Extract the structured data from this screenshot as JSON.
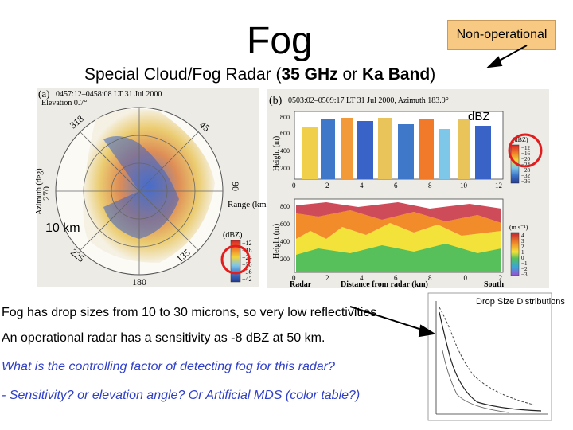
{
  "slide": {
    "title": "Fog",
    "badge": "Non-operational",
    "subtitle_prefix": "Special Cloud/Fog Radar (",
    "subtitle_freq": "35 GHz",
    "subtitle_mid": " or ",
    "subtitle_band": "Ka Band",
    "subtitle_suffix": ")",
    "annotation_dbz": "dBZ",
    "annotation_range": "10 km",
    "annotation_drop": "Drop Size Distributions",
    "body": [
      "Fog has drop sizes from 10 to 30 microns, so very low reflectivities.",
      "An operational radar has a sensitivity as -8 dBZ at 50 km.",
      "What is the controlling factor of detecting fog for this radar?",
      "- Sensitivity? or elevation angle? Or Artificial MDS (color table?)"
    ]
  },
  "figure_a": {
    "panel": "(a)",
    "header": "0457:12–0458:08 LT 31 Jul 2000",
    "elevation": "Elevation  0.7°",
    "azimuth_labels": [
      "318",
      "45",
      "270",
      "90",
      "225",
      "135",
      "180"
    ],
    "axis_left": "Azimuth (deg)",
    "range_label": "Range (km)",
    "colorbar_title": "(dBZ)",
    "colorbar_ticks": [
      "−12",
      "−18",
      "−24",
      "−30",
      "−36",
      "−42"
    ]
  },
  "figure_b": {
    "panel": "(b)",
    "header": "0503:02–0509:17 LT 31 Jul 2000, Azimuth 183.9°",
    "ylabel": "Height (m)",
    "xticks": [
      "0",
      "2",
      "4",
      "6",
      "8",
      "10",
      "12"
    ],
    "yticks_top": [
      "800",
      "600",
      "400",
      "200"
    ],
    "yticks_bottom": [
      "800",
      "600",
      "400",
      "200"
    ],
    "xlabel_left": "Radar",
    "xlabel_mid": "Distance from radar (km)",
    "xlabel_right": "South",
    "cb_top_title": "(dBZ)",
    "cb_top_ticks": [
      "−12",
      "−16",
      "−20",
      "−24",
      "−28",
      "−32",
      "−36"
    ],
    "cb_bottom_title": "(m s⁻¹)",
    "cb_bottom_ticks": [
      "4",
      "3",
      "2",
      "1",
      "0",
      "−1",
      "−2",
      "−3"
    ]
  },
  "colors": {
    "badge_bg": "#f7c983",
    "question_text": "#2f3fc8",
    "circle": "#e21d1d"
  }
}
